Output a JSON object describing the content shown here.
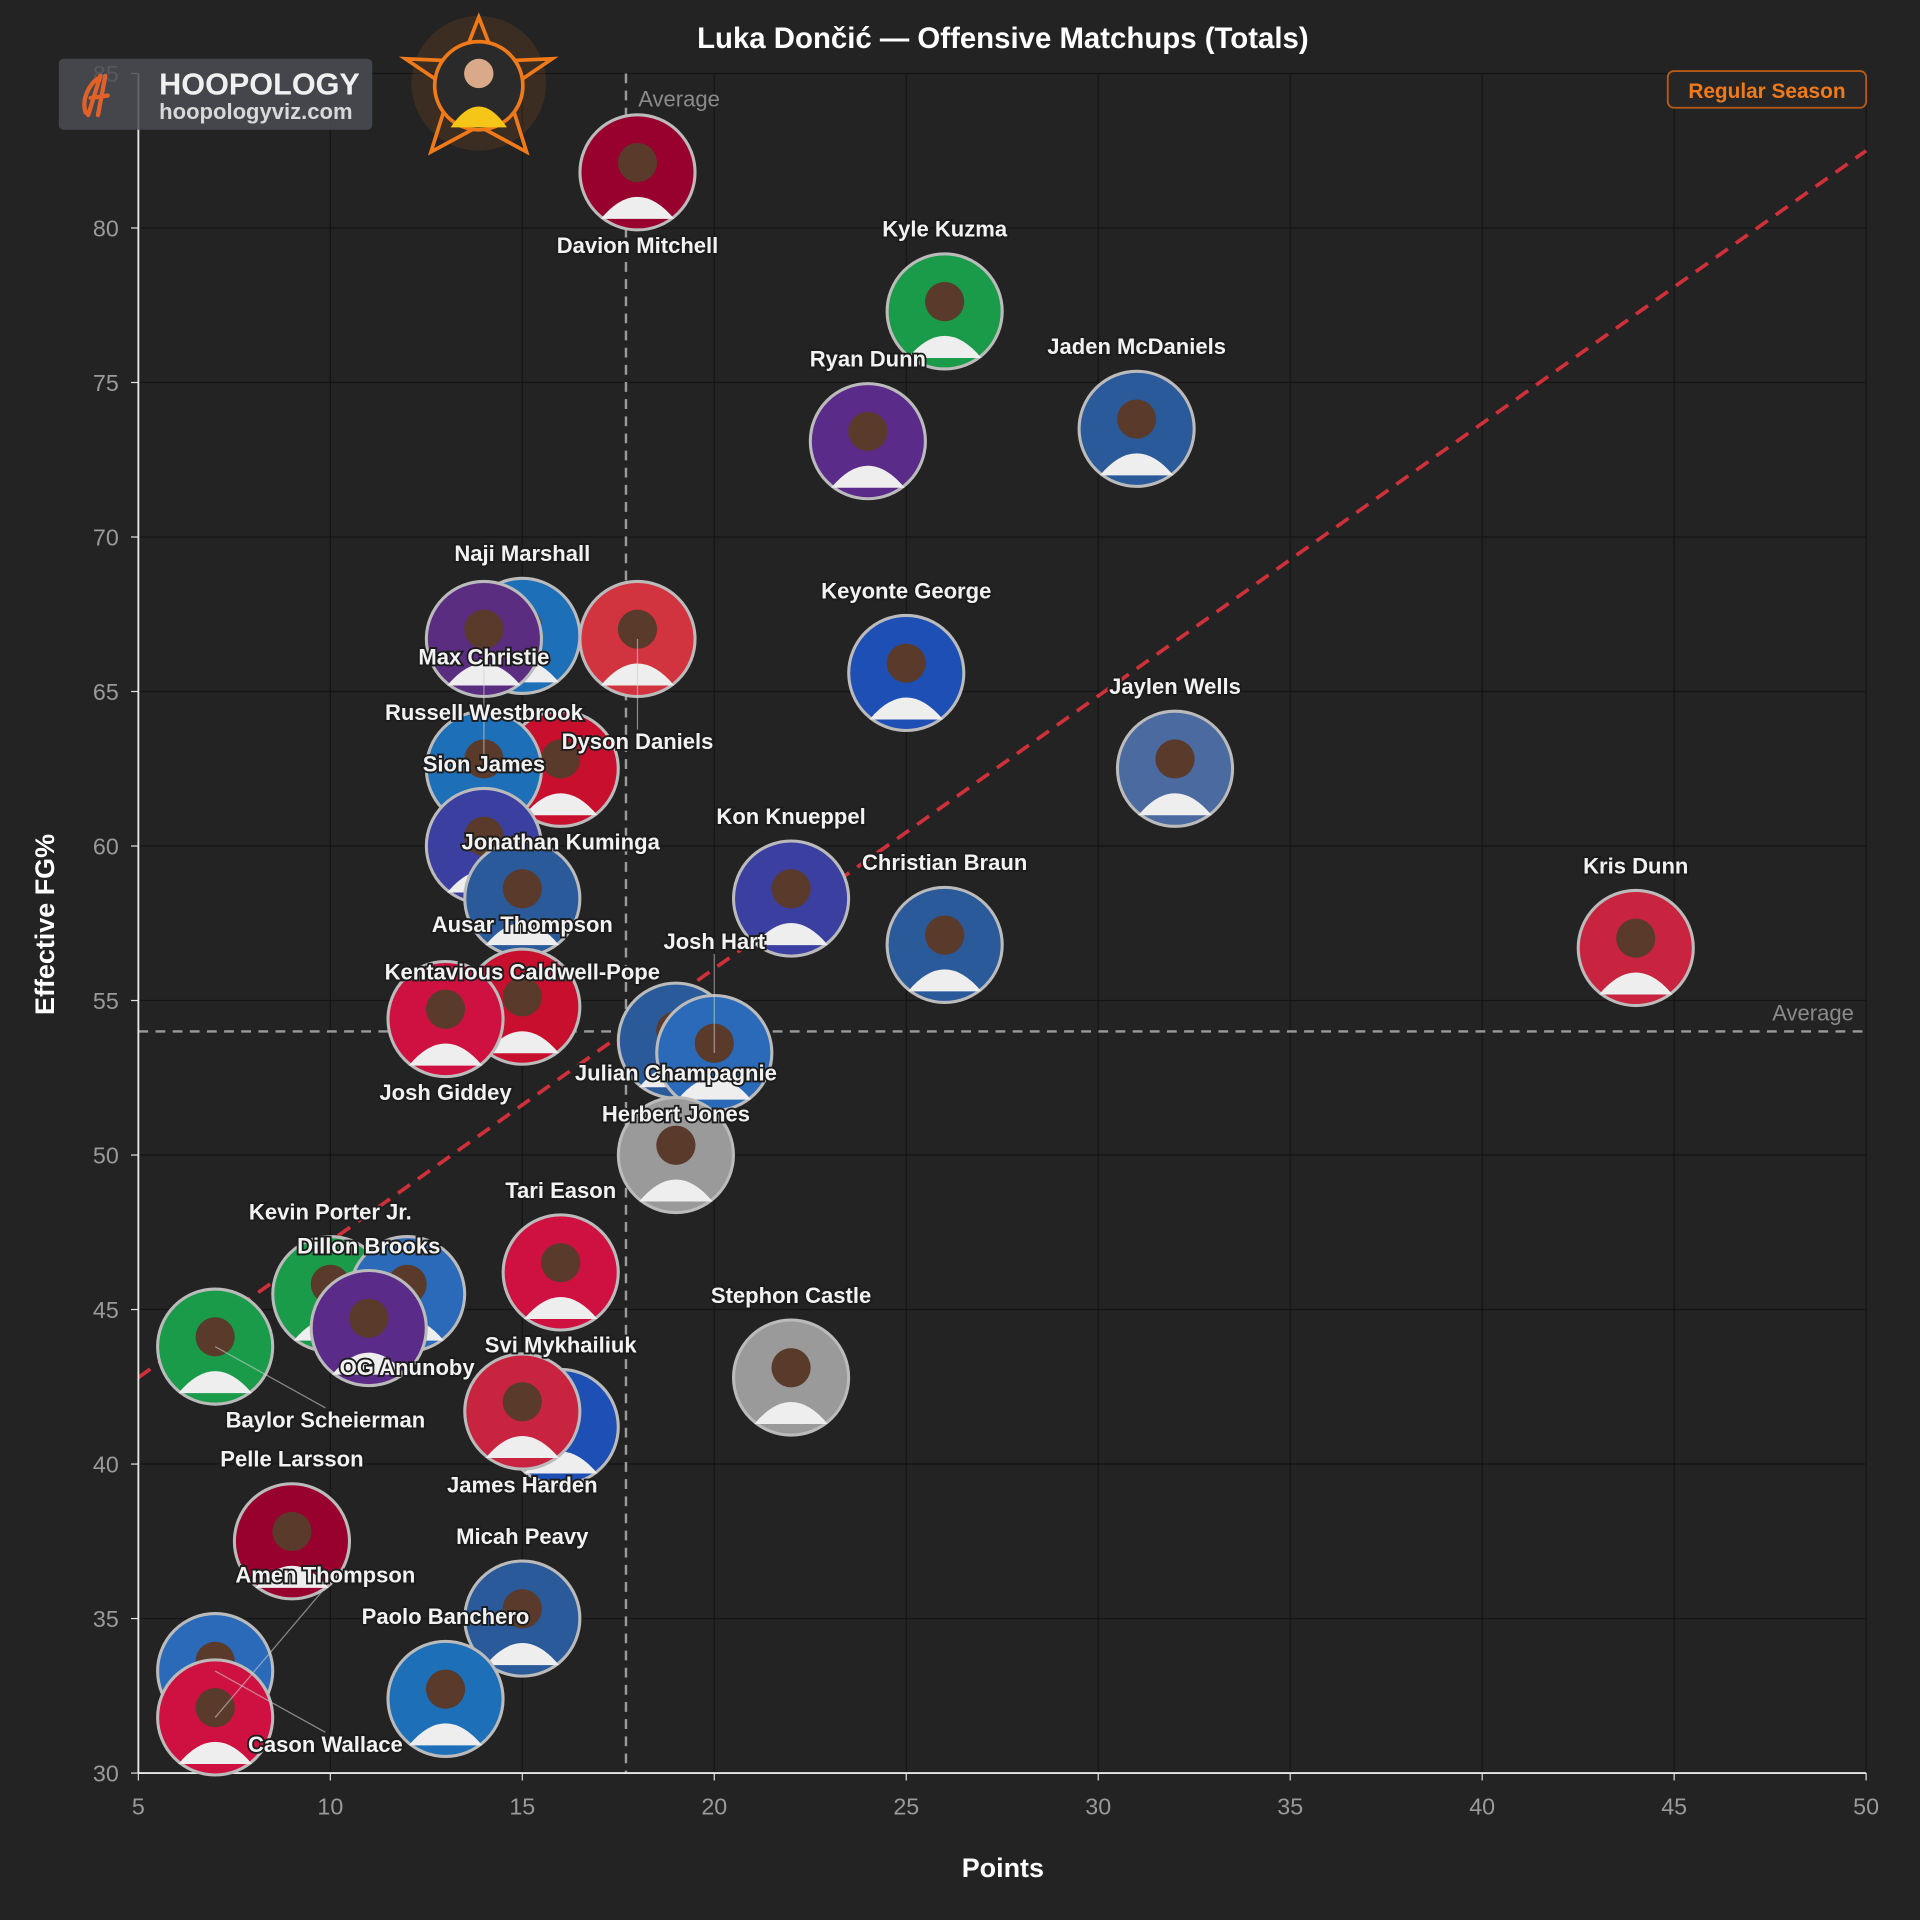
{
  "logo": {
    "name": "HOOPOLOGY",
    "site": "hoopologyviz.com"
  },
  "badge": {
    "label": "Regular Season",
    "color": "#f07a1a"
  },
  "chart_data": {
    "type": "scatter",
    "title": "Luka Dončić — Offensive Matchups (Totals)",
    "xlabel": "Points",
    "ylabel": "Effective FG%",
    "xlim": [
      5,
      50
    ],
    "ylim": [
      30,
      85
    ],
    "xticks": [
      5,
      10,
      15,
      20,
      25,
      30,
      35,
      40,
      45,
      50
    ],
    "yticks": [
      30,
      35,
      40,
      45,
      50,
      55,
      60,
      65,
      70,
      75,
      80,
      85
    ],
    "grid": true,
    "averages": {
      "x": 17.7,
      "y": 54.0,
      "label": "Average"
    },
    "trend_line": {
      "x": [
        5,
        50
      ],
      "y": [
        42.8,
        82.5
      ],
      "color": "#d0303a"
    },
    "points": [
      {
        "name": "Davion Mitchell",
        "x": 18,
        "y": 81.8,
        "color": "#98002e"
      },
      {
        "name": "Kyle Kuzma",
        "x": 26,
        "y": 77.3,
        "color": "#1a9b4a"
      },
      {
        "name": "Ryan Dunn",
        "x": 24,
        "y": 73.1,
        "color": "#5b2b8a"
      },
      {
        "name": "Jaden McDaniels",
        "x": 31,
        "y": 73.5,
        "color": "#2a5a99"
      },
      {
        "name": "Naji Marshall",
        "x": 15,
        "y": 66.8,
        "color": "#1d6fb8"
      },
      {
        "name": "Russell Westbrook",
        "x": 14,
        "y": 66.7,
        "color": "#5a2d81"
      },
      {
        "name": "Dyson Daniels",
        "x": 18,
        "y": 66.7,
        "color": "#d2343f"
      },
      {
        "name": "Keyonte George",
        "x": 25,
        "y": 65.6,
        "color": "#1e4fb5"
      },
      {
        "name": "Jaylen Wells",
        "x": 32,
        "y": 62.5,
        "color": "#4a6aa0"
      },
      {
        "name": "Jonathan Kuminga",
        "x": 16,
        "y": 62.5,
        "color": "#c8102e"
      },
      {
        "name": "Max Christie",
        "x": 14,
        "y": 62.5,
        "color": "#1d6fb8"
      },
      {
        "name": "Sion James",
        "x": 14,
        "y": 60.0,
        "color": "#3b3fa0"
      },
      {
        "name": "Kentavious Caldwell-Pope",
        "x": 15,
        "y": 58.3,
        "color": "#2a5a99"
      },
      {
        "name": "Kon Knueppel",
        "x": 22,
        "y": 58.3,
        "color": "#3b3fa0"
      },
      {
        "name": "Christian Braun",
        "x": 26,
        "y": 56.8,
        "color": "#2a5a99"
      },
      {
        "name": "Kris Dunn",
        "x": 44,
        "y": 56.7,
        "color": "#c8243f"
      },
      {
        "name": "Ausar Thompson",
        "x": 15,
        "y": 54.8,
        "color": "#c8102e"
      },
      {
        "name": "Josh Giddey",
        "x": 13,
        "y": 54.4,
        "color": "#ce1141"
      },
      {
        "name": "Herbert Jones",
        "x": 19,
        "y": 53.7,
        "color": "#2a5a99"
      },
      {
        "name": "Josh Hart",
        "x": 20,
        "y": 53.3,
        "color": "#2a6ab8"
      },
      {
        "name": "Julian Champagnie",
        "x": 19,
        "y": 50.0,
        "color": "#9a9a9a"
      },
      {
        "name": "Kevin Porter Jr.",
        "x": 10,
        "y": 45.5,
        "color": "#1a9b4a"
      },
      {
        "name": "OG Anunoby",
        "x": 12,
        "y": 45.5,
        "color": "#2a6ab8"
      },
      {
        "name": "Tari Eason",
        "x": 16,
        "y": 46.2,
        "color": "#ce1141"
      },
      {
        "name": "Dillon Brooks",
        "x": 11,
        "y": 44.4,
        "color": "#5b2b8a"
      },
      {
        "name": "Baylor Scheierman",
        "x": 7,
        "y": 43.8,
        "color": "#1a9b4a"
      },
      {
        "name": "Stephon Castle",
        "x": 22,
        "y": 42.8,
        "color": "#9a9a9a"
      },
      {
        "name": "Svi Mykhailiuk",
        "x": 16,
        "y": 41.2,
        "color": "#1e4fb5"
      },
      {
        "name": "James Harden",
        "x": 15,
        "y": 41.7,
        "color": "#c8243f"
      },
      {
        "name": "Pelle Larsson",
        "x": 9,
        "y": 37.5,
        "color": "#98002e"
      },
      {
        "name": "Micah Peavy",
        "x": 15,
        "y": 35.0,
        "color": "#2a5a99"
      },
      {
        "name": "Paolo Banchero",
        "x": 13,
        "y": 32.4,
        "color": "#1d6fb8"
      },
      {
        "name": "Cason Wallace",
        "x": 7,
        "y": 33.3,
        "color": "#2a6ab8"
      },
      {
        "name": "Amen Thompson",
        "x": 7,
        "y": 31.8,
        "color": "#ce1141"
      }
    ]
  }
}
